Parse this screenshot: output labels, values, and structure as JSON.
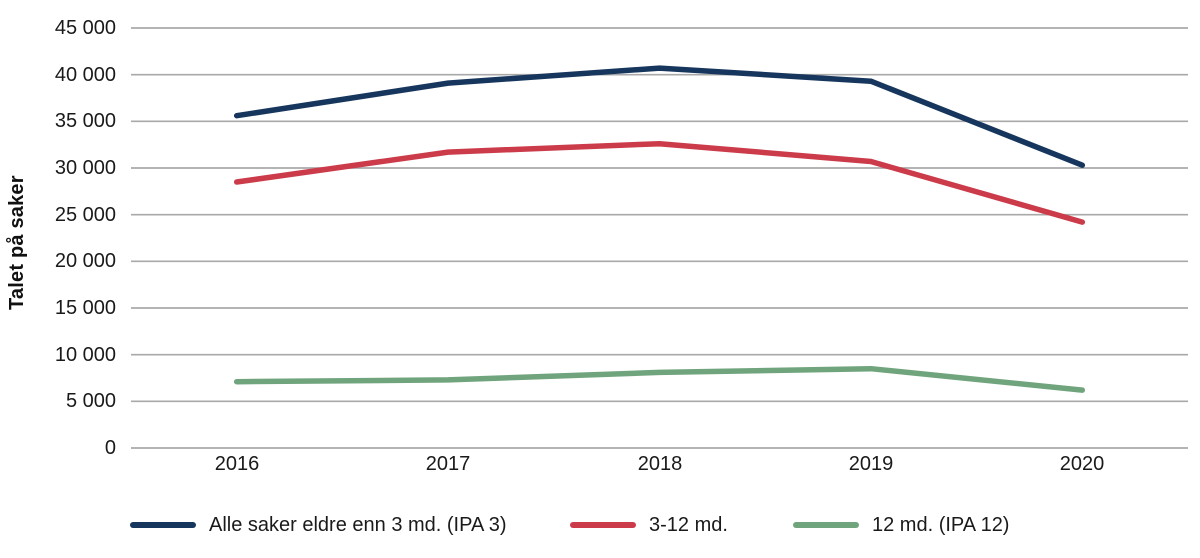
{
  "chart_data": {
    "type": "line",
    "title": "",
    "xlabel": "",
    "ylabel": "Talet på saker",
    "x_labels": [
      "2016",
      "2017",
      "2018",
      "2019",
      "2020"
    ],
    "y_tick_labels": [
      "45 000",
      "40 000",
      "35 000",
      "30 000",
      "25 000",
      "20 000",
      "15 000",
      "10 000",
      "5 000",
      "0"
    ],
    "ylim": [
      0,
      45000
    ],
    "y_tick_step": 5000,
    "grid": "horizontal",
    "gridline_color": "#a9a9a9",
    "legend_position": "bottom",
    "series": [
      {
        "name": "Alle saker eldre enn 3 md. (IPA 3)",
        "color": "#17365d",
        "values": [
          35600,
          39100,
          40700,
          39300,
          30300
        ]
      },
      {
        "name": "3-12 md.",
        "color": "#cb3b4a",
        "values": [
          28500,
          31700,
          32600,
          30700,
          24200
        ]
      },
      {
        "name": "12 md. (IPA 12)",
        "color": "#70a47c",
        "values": [
          7100,
          7300,
          8100,
          8500,
          6200
        ]
      }
    ]
  }
}
